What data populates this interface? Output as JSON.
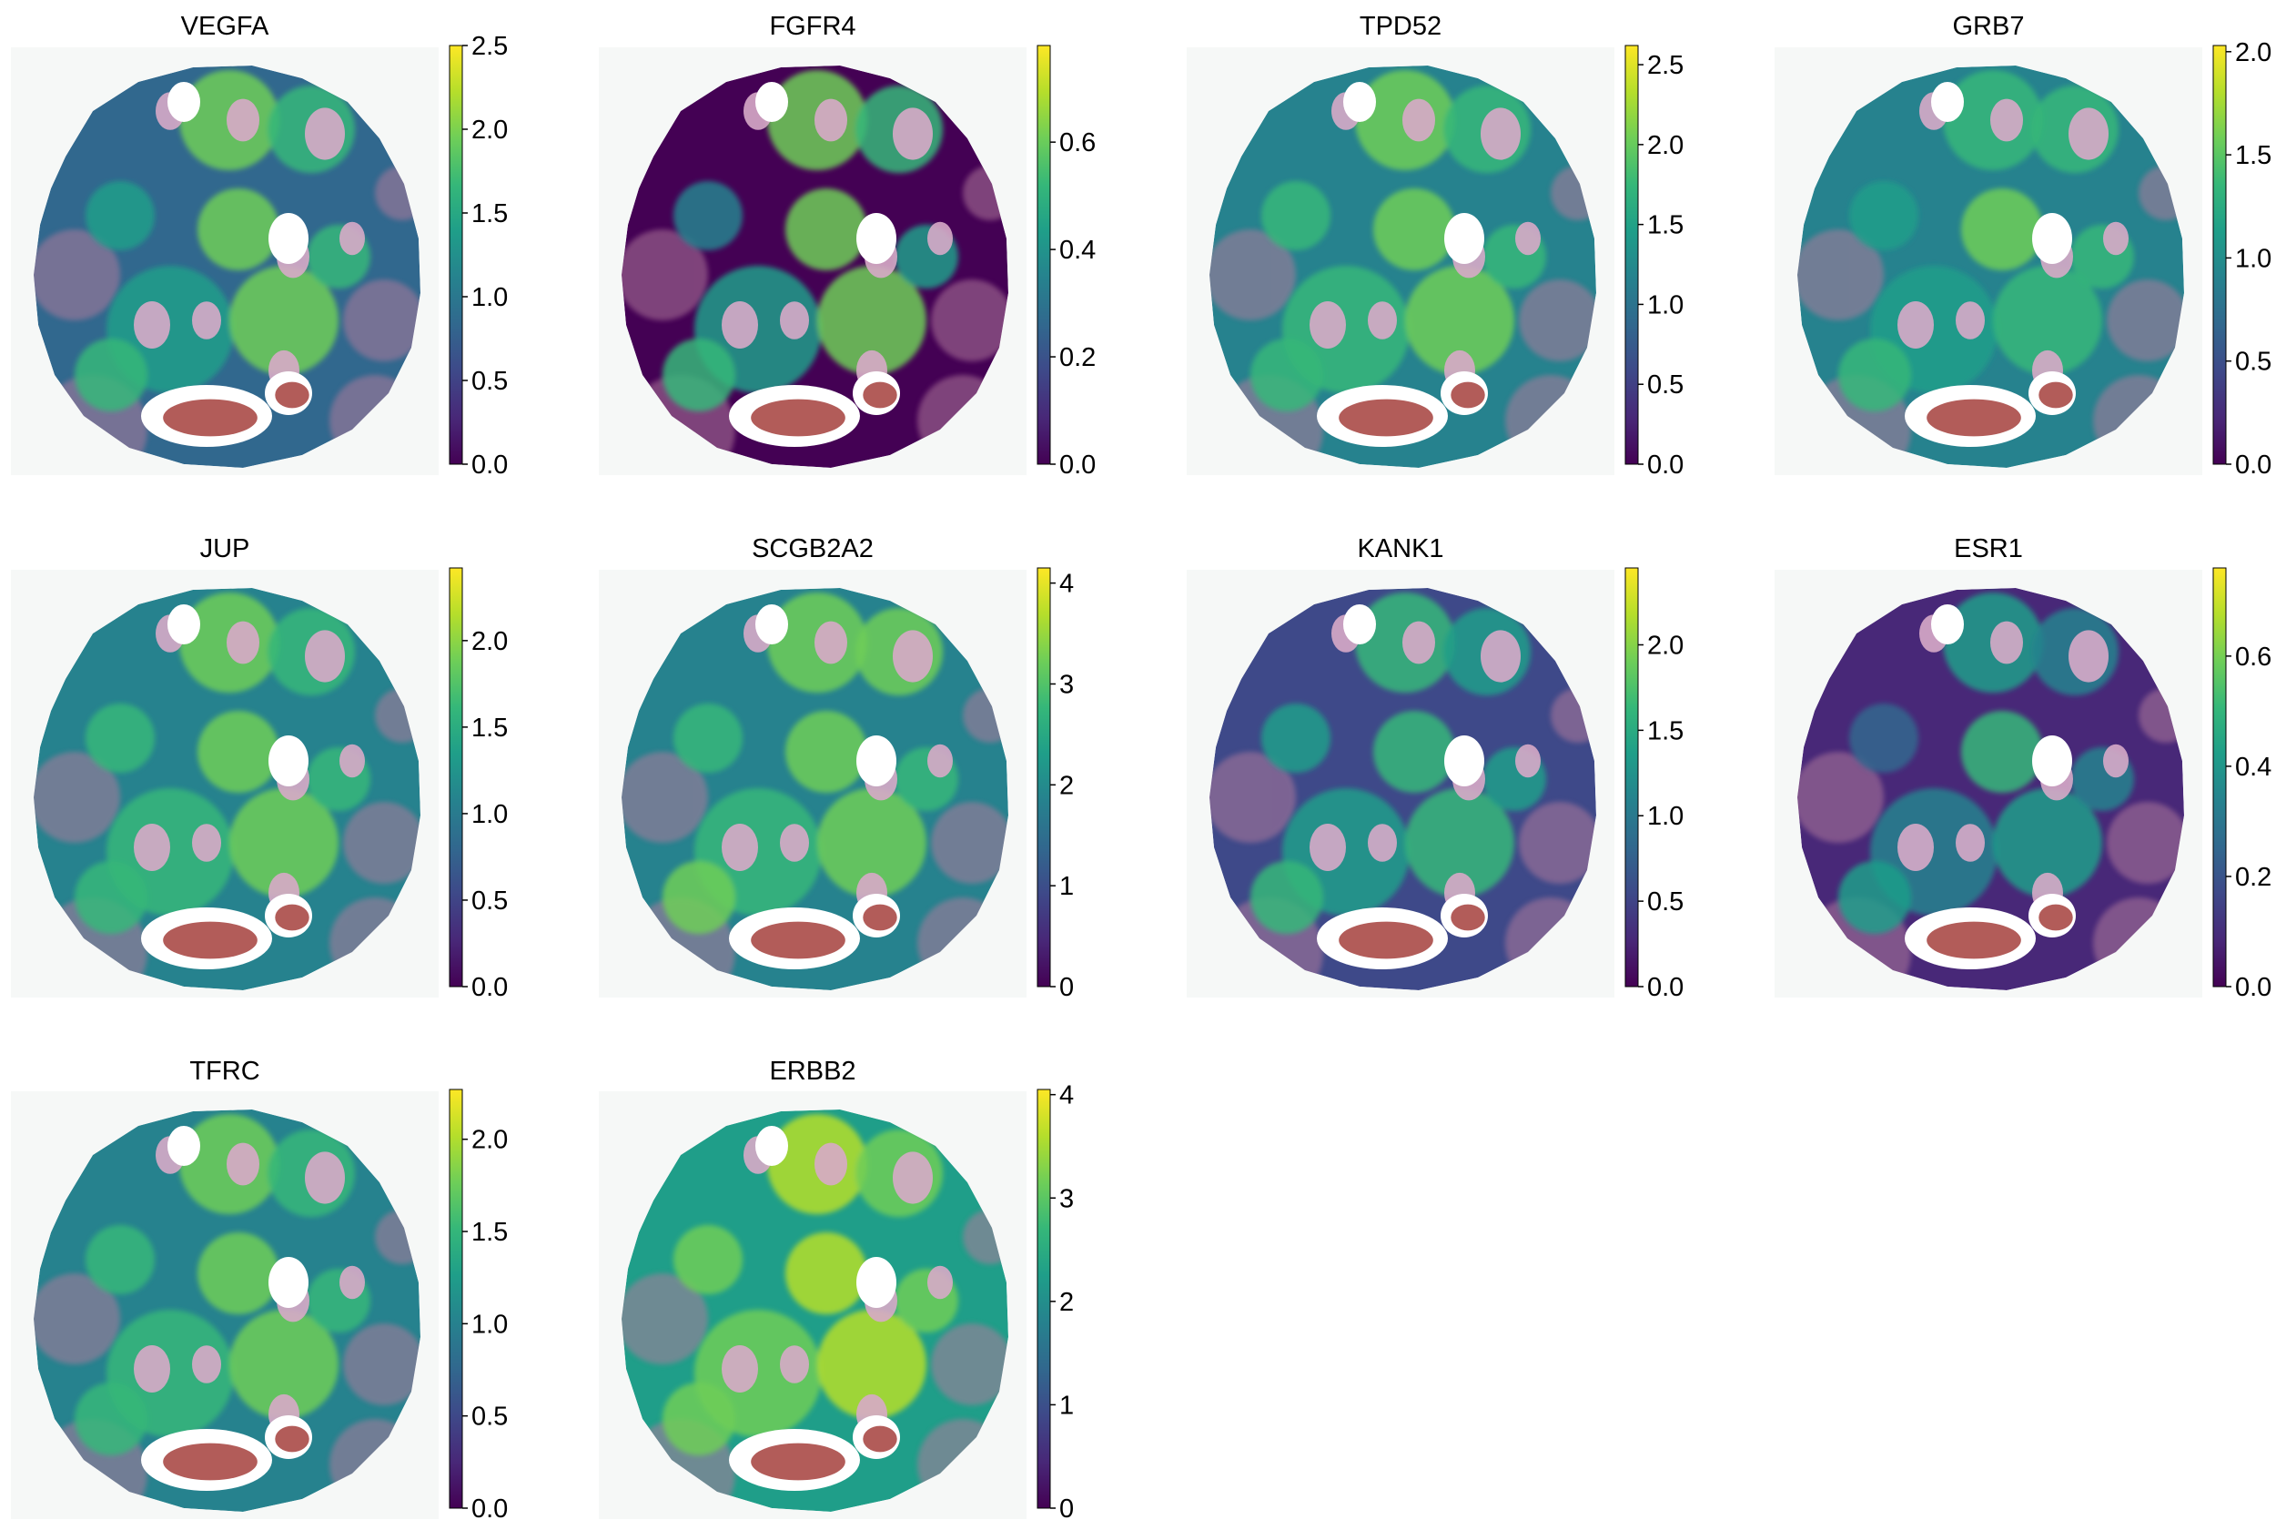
{
  "figure": {
    "colormap": "viridis",
    "colormap_stops": [
      "#440154",
      "#482878",
      "#3e4989",
      "#31688e",
      "#26828e",
      "#1f9e89",
      "#35b779",
      "#6ece58",
      "#b5de2b",
      "#fde725"
    ],
    "background": "#ffffff"
  },
  "chart_data": [
    {
      "type": "heatmap",
      "title": "VEGFA",
      "colorbar": {
        "min": 0.0,
        "max": 2.5,
        "ticks": [
          "0.0",
          "0.5",
          "1.0",
          "1.5",
          "2.0",
          "2.5"
        ]
      }
    },
    {
      "type": "heatmap",
      "title": "FGFR4",
      "colorbar": {
        "min": 0.0,
        "max": 0.78,
        "ticks": [
          "0.0",
          "0.2",
          "0.4",
          "0.6"
        ]
      }
    },
    {
      "type": "heatmap",
      "title": "TPD52",
      "colorbar": {
        "min": 0.0,
        "max": 2.62,
        "ticks": [
          "0.0",
          "0.5",
          "1.0",
          "1.5",
          "2.0",
          "2.5"
        ]
      }
    },
    {
      "type": "heatmap",
      "title": "GRB7",
      "colorbar": {
        "min": 0.0,
        "max": 2.03,
        "ticks": [
          "0.0",
          "0.5",
          "1.0",
          "1.5",
          "2.0"
        ]
      }
    },
    {
      "type": "heatmap",
      "title": "JUP",
      "colorbar": {
        "min": 0.0,
        "max": 2.42,
        "ticks": [
          "0.0",
          "0.5",
          "1.0",
          "1.5",
          "2.0"
        ]
      }
    },
    {
      "type": "heatmap",
      "title": "SCGB2A2",
      "colorbar": {
        "min": 0,
        "max": 4.15,
        "ticks": [
          "0",
          "1",
          "2",
          "3",
          "4"
        ]
      }
    },
    {
      "type": "heatmap",
      "title": "KANK1",
      "colorbar": {
        "min": 0.0,
        "max": 2.45,
        "ticks": [
          "0.0",
          "0.5",
          "1.0",
          "1.5",
          "2.0"
        ]
      }
    },
    {
      "type": "heatmap",
      "title": "ESR1",
      "colorbar": {
        "min": 0.0,
        "max": 0.76,
        "ticks": [
          "0.0",
          "0.2",
          "0.4",
          "0.6"
        ]
      }
    },
    {
      "type": "heatmap",
      "title": "TFRC",
      "colorbar": {
        "min": 0.0,
        "max": 2.27,
        "ticks": [
          "0.0",
          "0.5",
          "1.0",
          "1.5",
          "2.0"
        ]
      }
    },
    {
      "type": "heatmap",
      "title": "ERBB2",
      "colorbar": {
        "min": 0,
        "max": 4.05,
        "ticks": [
          "0",
          "1",
          "2",
          "3",
          "4"
        ]
      }
    }
  ]
}
